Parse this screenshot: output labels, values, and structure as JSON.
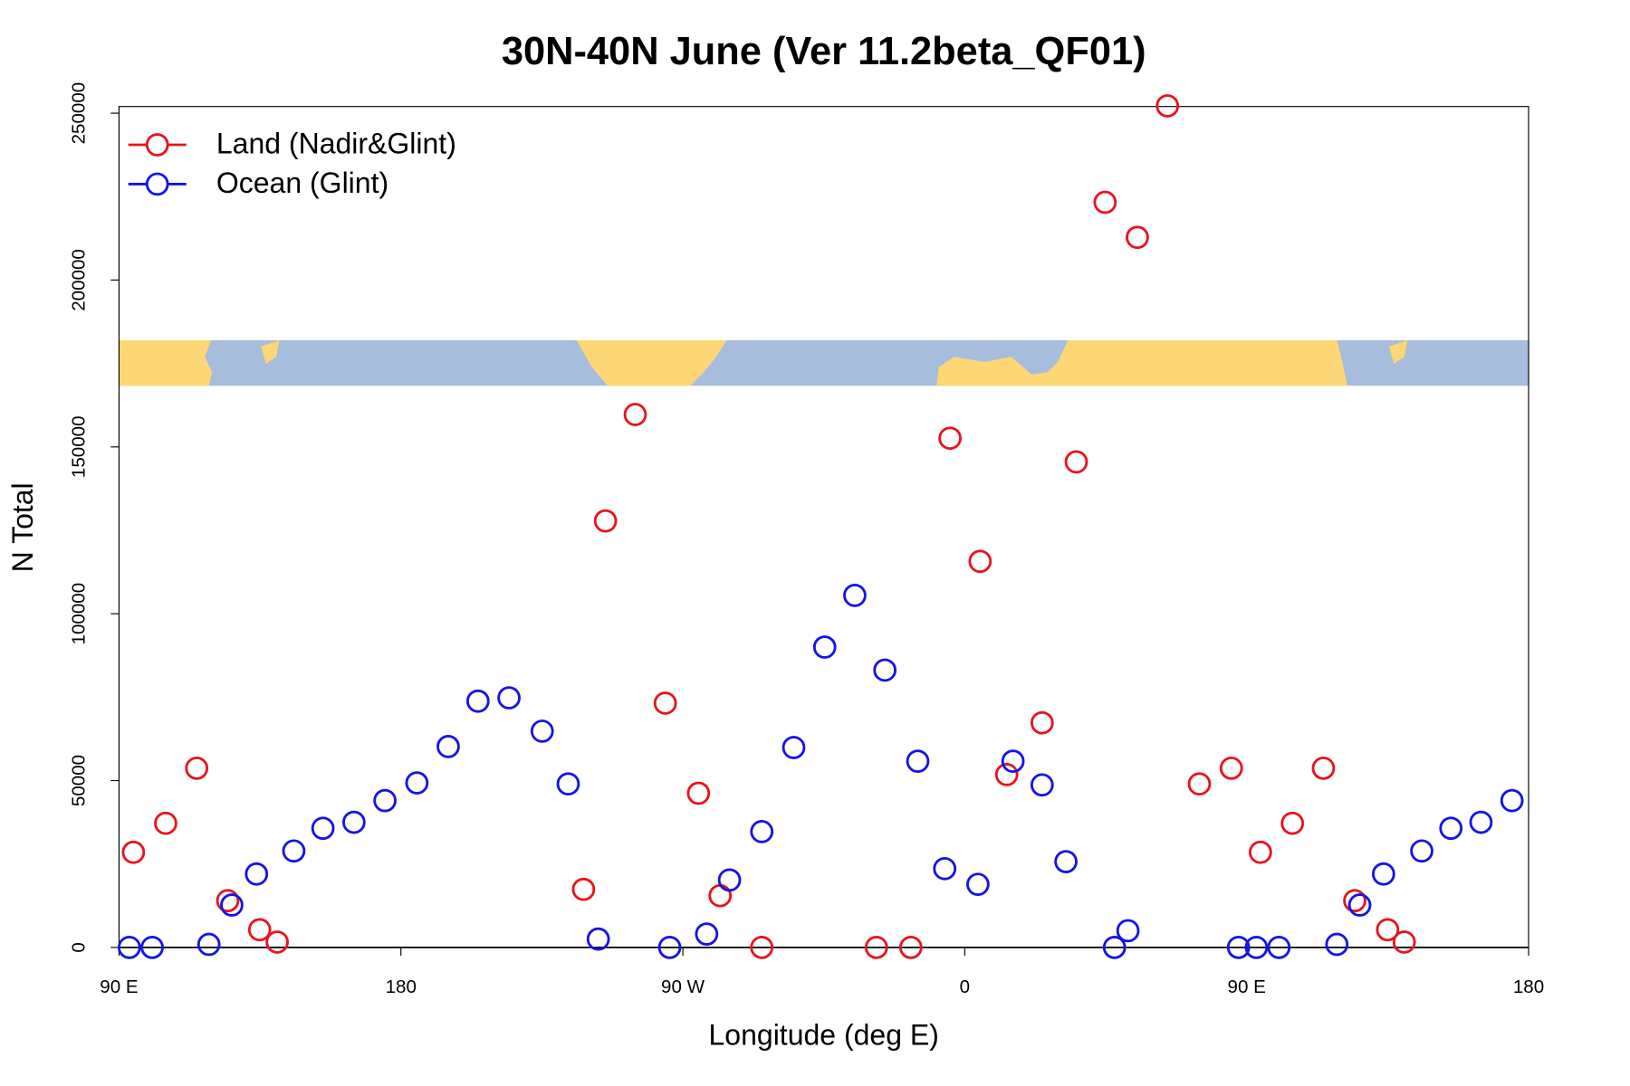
{
  "chart_data": {
    "type": "scatter",
    "title": "30N-40N June (Ver 11.2beta_QF01)",
    "x_label": "Longitude (deg E)",
    "y_label": "N Total",
    "xlim": [
      90,
      540
    ],
    "ylim": [
      0,
      252000
    ],
    "xticks": [
      {
        "value": 90,
        "label": "90 E"
      },
      180,
      {
        "value": 270,
        "label": "90 W"
      },
      {
        "value": 360,
        "label": "0"
      },
      {
        "value": 450,
        "label": "90 E"
      },
      {
        "value": 540,
        "label": "180"
      }
    ],
    "yticks": [
      0,
      50000,
      100000,
      150000,
      200000,
      250000
    ],
    "legend": "top-left",
    "series": [
      {
        "name": "Land (Nadir&Glint)",
        "color": "#e8141c",
        "x": [
          94.6,
          104.9,
          114.8,
          124.7,
          134.9,
          140.5,
          238.3,
          245.3,
          254.8,
          264.4,
          275.0,
          281.9,
          295.2,
          331.8,
          342.8,
          355.3,
          364.9,
          373.4,
          384.7,
          395.6,
          404.8,
          415.1,
          424.7,
          434.9,
          445.1,
          454.4,
          464.6,
          474.5,
          484.5,
          495.0,
          500.3
        ],
        "values": [
          28500,
          37200,
          53700,
          14000,
          5300,
          1600,
          17400,
          127800,
          159700,
          73200,
          46200,
          15500,
          0,
          0,
          0,
          152600,
          115700,
          51800,
          67300,
          145500,
          223300,
          212800,
          252200,
          49000,
          53700,
          28500,
          37200,
          53700,
          14000,
          5300,
          1600
        ]
      },
      {
        "name": "Ocean (Glint)",
        "color": "#1414e8",
        "x": [
          93.3,
          100.6,
          118.7,
          126.0,
          133.9,
          145.8,
          155.1,
          165.0,
          174.9,
          185.1,
          195.1,
          204.6,
          214.5,
          225.1,
          233.4,
          243.0,
          265.8,
          277.6,
          284.9,
          295.2,
          305.4,
          315.3,
          324.9,
          334.5,
          345.0,
          353.6,
          364.2,
          375.4,
          384.7,
          392.3,
          407.8,
          412.1,
          447.4,
          453.1,
          460.3,
          478.8,
          486.1,
          493.7,
          505.9,
          515.2,
          524.8,
          534.7
        ],
        "values": [
          0,
          0,
          900,
          12700,
          22000,
          28900,
          35700,
          37500,
          44000,
          49300,
          60200,
          73800,
          74800,
          64800,
          49000,
          2500,
          0,
          4000,
          20200,
          34700,
          59900,
          90000,
          105500,
          83100,
          55800,
          23600,
          18900,
          55800,
          48700,
          25700,
          0,
          5000,
          0,
          0,
          0,
          900,
          12700,
          22000,
          28900,
          35700,
          37500,
          44000
        ]
      }
    ]
  }
}
